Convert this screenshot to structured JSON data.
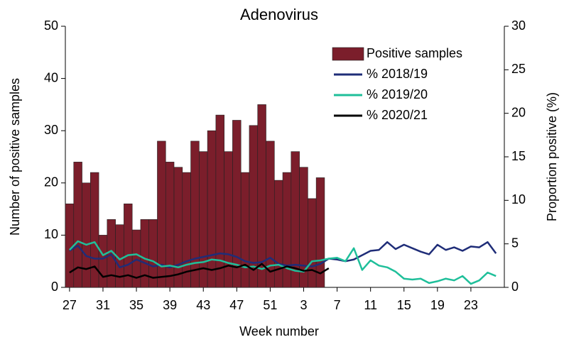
{
  "chart_data": {
    "type": "bar",
    "title": "Adenovirus",
    "xlabel": "Week number",
    "ylabel": "Number of positive samples",
    "y2label": "Proportion positive (%)",
    "categories": [
      "27",
      null,
      null,
      null,
      "31",
      null,
      null,
      null,
      "35",
      null,
      null,
      null,
      "39",
      null,
      null,
      null,
      "43",
      null,
      null,
      null,
      "47",
      null,
      null,
      null,
      "51",
      null,
      null,
      null,
      "3",
      null,
      null,
      null,
      "7",
      null,
      null,
      null,
      "11",
      null,
      null,
      null,
      "15",
      null,
      null,
      null,
      "19",
      null,
      null,
      null,
      "23",
      null,
      null,
      null
    ],
    "ylim": [
      0,
      50
    ],
    "yticks": [
      0,
      10,
      20,
      30,
      40,
      50
    ],
    "y2lim": [
      0,
      30
    ],
    "y2ticks": [
      0,
      5,
      10,
      15,
      20,
      25,
      30
    ],
    "legend": "upper right",
    "series": [
      {
        "name": "Positive samples",
        "type": "bar",
        "color": "#7b1e2b",
        "values": [
          16,
          24,
          20,
          22,
          10,
          13,
          12,
          16,
          11,
          13,
          13,
          28,
          24,
          23,
          22,
          28,
          26,
          30,
          33,
          26,
          32,
          22,
          31,
          35,
          28,
          20.5,
          22,
          26,
          23,
          17,
          21,
          null,
          null,
          null,
          null,
          null,
          null,
          null,
          null,
          null,
          null,
          null,
          null,
          null,
          null,
          null,
          null,
          null,
          null,
          null,
          null,
          null
        ]
      },
      {
        "name": "% 2018/19",
        "type": "line",
        "axis": "y2",
        "color": "#1f2d78",
        "values": [
          4.2,
          4.8,
          3.6,
          3.3,
          3.3,
          3.8,
          2.3,
          2.6,
          3.2,
          2.8,
          2.4,
          2.6,
          2.3,
          2.6,
          3.0,
          3.3,
          3.5,
          3.7,
          3.9,
          3.8,
          3.5,
          3.0,
          2.8,
          2.9,
          3.4,
          2.7,
          2.5,
          2.6,
          2.5,
          2.4,
          2.7,
          3.3,
          3.2,
          3.0,
          3.2,
          3.7,
          4.2,
          4.3,
          5.2,
          4.4,
          4.9,
          4.5,
          4.1,
          3.8,
          4.9,
          4.3,
          4.6,
          4.2,
          4.7,
          4.6,
          5.2,
          3.9
        ]
      },
      {
        "name": "% 2019/20",
        "type": "line",
        "axis": "y2",
        "color": "#1fbf9a",
        "values": [
          4.3,
          5.3,
          4.9,
          5.2,
          3.7,
          4.2,
          3.2,
          3.7,
          3.8,
          3.3,
          3.0,
          2.4,
          2.5,
          2.3,
          2.6,
          2.8,
          2.9,
          3.2,
          3.1,
          2.8,
          2.6,
          2.3,
          2.4,
          2.1,
          2.5,
          2.6,
          2.2,
          1.9,
          1.8,
          3.0,
          3.1,
          3.3,
          3.4,
          3.0,
          4.5,
          2.0,
          3.1,
          2.5,
          2.3,
          1.8,
          1.0,
          0.9,
          1.0,
          0.5,
          0.7,
          1.0,
          0.8,
          1.3,
          0.4,
          0.8,
          1.7,
          1.3
        ]
      },
      {
        "name": "% 2020/21",
        "type": "line",
        "axis": "y2",
        "color": "#000000",
        "values": [
          1.7,
          2.3,
          2.1,
          2.4,
          1.2,
          1.4,
          1.2,
          1.4,
          1.1,
          1.4,
          1.1,
          1.2,
          1.3,
          1.5,
          1.8,
          2.0,
          2.2,
          2.0,
          2.2,
          2.5,
          2.3,
          2.6,
          2.0,
          2.7,
          1.8,
          2.1,
          2.4,
          2.2,
          1.9,
          2.0,
          1.6,
          2.2,
          null,
          null,
          null,
          null,
          null,
          null,
          null,
          null,
          null,
          null,
          null,
          null,
          null,
          null,
          null,
          null,
          null,
          null,
          null,
          null
        ]
      }
    ]
  }
}
